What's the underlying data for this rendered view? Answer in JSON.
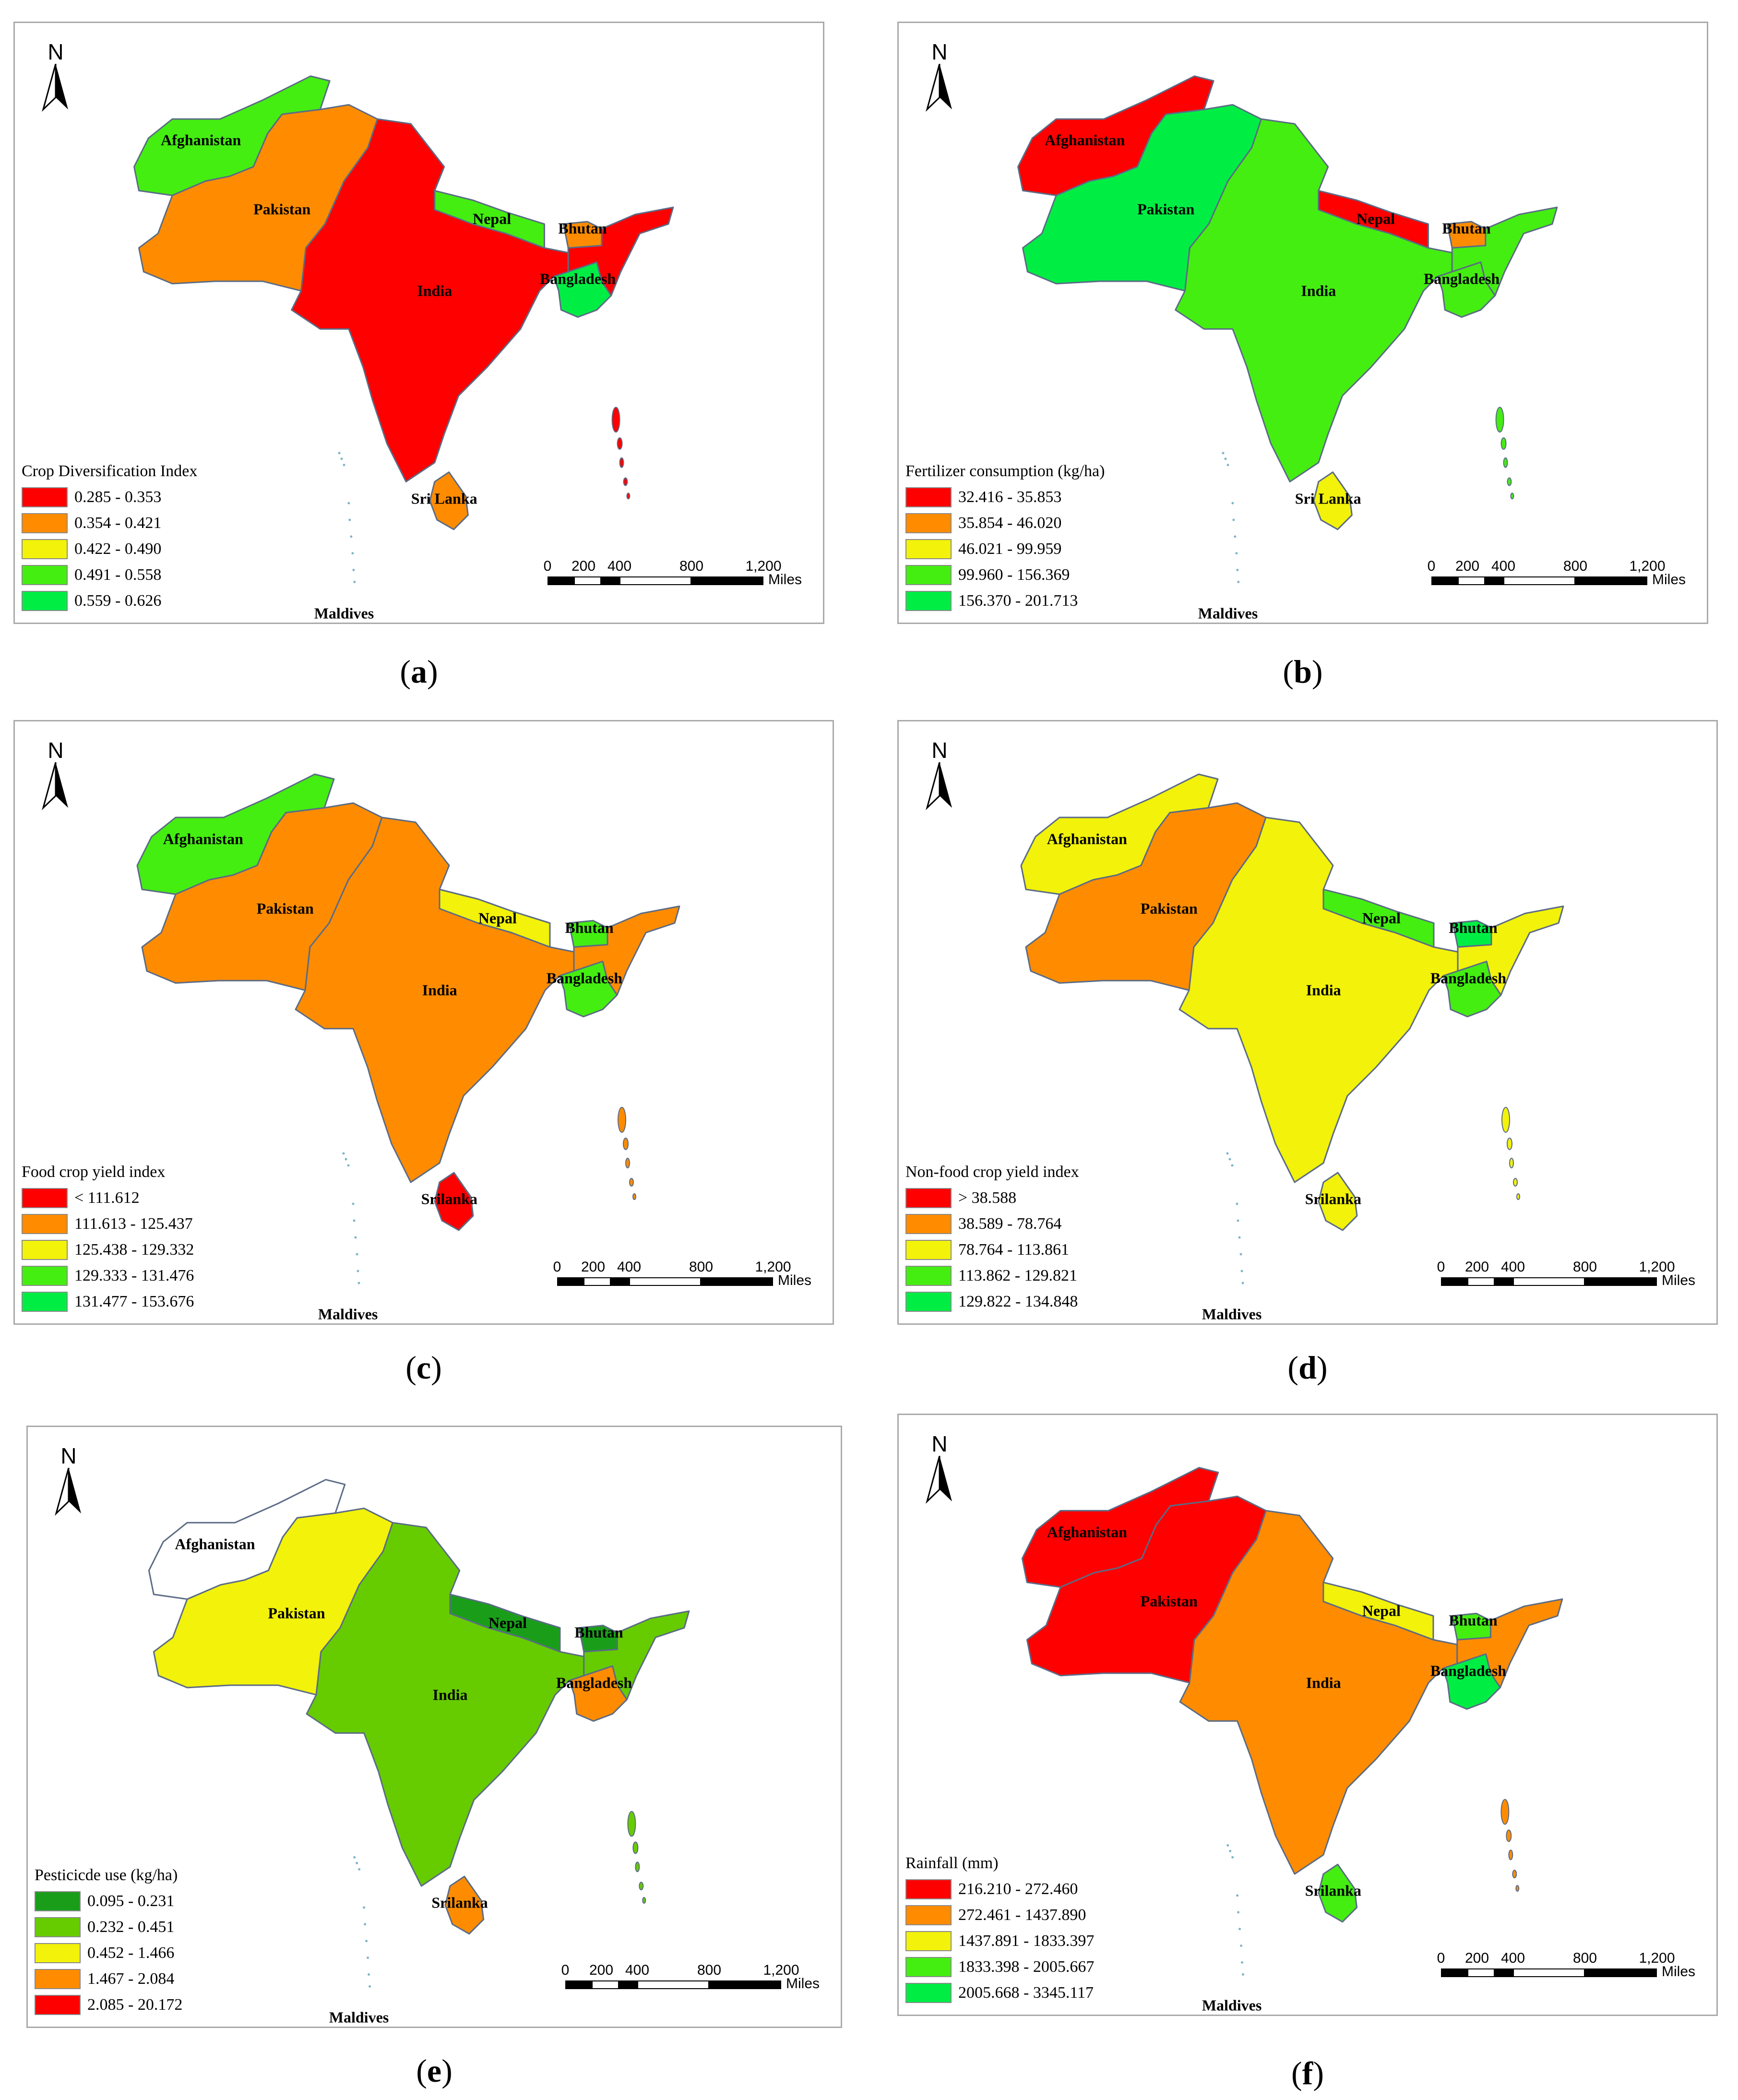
{
  "common": {
    "north_label": "N",
    "scale": {
      "ticks": [
        "0",
        "200",
        "400",
        "800",
        "1,200"
      ],
      "unit": "Miles"
    },
    "country_names": [
      "Afghanistan",
      "Pakistan",
      "India",
      "Nepal",
      "Bhutan",
      "Bangladesh",
      "Maldives"
    ]
  },
  "panels": [
    {
      "caption": {
        "open": "(",
        "letter": "a",
        "close": ")"
      },
      "legend_title": "Crop Diversification Index",
      "legend": [
        {
          "label": "0.285 - 0.353",
          "color": "#ff0000"
        },
        {
          "label": "0.354 - 0.421",
          "color": "#ff8c00"
        },
        {
          "label": "0.422 - 0.490",
          "color": "#f2f20a"
        },
        {
          "label": "0.491 - 0.558",
          "color": "#44ee11"
        },
        {
          "label": "0.559 - 0.626",
          "color": "#00ee44"
        }
      ],
      "sri_lanka_label": "Sri Lanka",
      "fills": {
        "afghanistan": "#44ee11",
        "pakistan": "#ff8c00",
        "india": "#ff0000",
        "nepal": "#44ee11",
        "bhutan": "#ff8c00",
        "bangladesh": "#00ee44",
        "northeast": "#ff0000",
        "srilanka": "#ff8c00"
      }
    },
    {
      "caption": {
        "open": "(",
        "letter": "b",
        "close": ")"
      },
      "legend_title": "Fertilizer consumption (kg/ha)",
      "legend": [
        {
          "label": "32.416 - 35.853",
          "color": "#ff0000"
        },
        {
          "label": "35.854 - 46.020",
          "color": "#ff8c00"
        },
        {
          "label": "46.021 - 99.959",
          "color": "#f2f20a"
        },
        {
          "label": "99.960 - 156.369",
          "color": "#44ee11"
        },
        {
          "label": "156.370 - 201.713",
          "color": "#00ee44"
        }
      ],
      "sri_lanka_label": "Sri Lanka",
      "fills": {
        "afghanistan": "#ff0000",
        "pakistan": "#00ee44",
        "india": "#44ee11",
        "nepal": "#ff0000",
        "bhutan": "#ff8c00",
        "bangladesh": "#44ee11",
        "northeast": "#44ee11",
        "srilanka": "#f2f20a"
      }
    },
    {
      "caption": {
        "open": "(",
        "letter": "c",
        "close": ")"
      },
      "legend_title": "Food crop yield index",
      "legend": [
        {
          "label": "< 111.612",
          "color": "#ff0000"
        },
        {
          "label": "111.613 - 125.437",
          "color": "#ff8c00"
        },
        {
          "label": "125.438 - 129.332",
          "color": "#f2f20a"
        },
        {
          "label": "129.333 - 131.476",
          "color": "#44ee11"
        },
        {
          "label": "131.477 - 153.676",
          "color": "#00ee44"
        }
      ],
      "sri_lanka_label": "Srilanka",
      "fills": {
        "afghanistan": "#44ee11",
        "pakistan": "#ff8c00",
        "india": "#ff8c00",
        "nepal": "#f2f20a",
        "bhutan": "#44ee11",
        "bangladesh": "#44ee11",
        "northeast": "#ff8c00",
        "srilanka": "#ff0000"
      }
    },
    {
      "caption": {
        "open": "(",
        "letter": "d",
        "close": ")"
      },
      "legend_title": "Non-food crop yield index",
      "legend": [
        {
          "label": "> 38.588",
          "color": "#ff0000"
        },
        {
          "label": "38.589 - 78.764",
          "color": "#ff8c00"
        },
        {
          "label": "78.764 - 113.861",
          "color": "#f2f20a"
        },
        {
          "label": "113.862 - 129.821",
          "color": "#44ee11"
        },
        {
          "label": "129.822 - 134.848",
          "color": "#00ee44"
        }
      ],
      "sri_lanka_label": "Srilanka",
      "fills": {
        "afghanistan": "#f2f20a",
        "pakistan": "#ff8c00",
        "india": "#f2f20a",
        "nepal": "#44ee11",
        "bhutan": "#00ee44",
        "bangladesh": "#44ee11",
        "northeast": "#f2f20a",
        "srilanka": "#f2f20a"
      }
    },
    {
      "caption": {
        "open": "(",
        "letter": "e",
        "close": ")"
      },
      "legend_title": "Pesticicde use (kg/ha)",
      "legend": [
        {
          "label": "0.095 - 0.231",
          "color": "#1a9e1a"
        },
        {
          "label": "0.232 - 0.451",
          "color": "#66cc00"
        },
        {
          "label": "0.452 - 1.466",
          "color": "#f2f20a"
        },
        {
          "label": "1.467 - 2.084",
          "color": "#ff8c00"
        },
        {
          "label": "2.085 - 20.172",
          "color": "#ff0000"
        }
      ],
      "sri_lanka_label": "Srilanka",
      "fills": {
        "afghanistan": "#ffffff",
        "pakistan": "#f2f20a",
        "india": "#66cc00",
        "nepal": "#1a9e1a",
        "bhutan": "#1a9e1a",
        "bangladesh": "#ff8c00",
        "northeast": "#66cc00",
        "srilanka": "#ff8c00"
      }
    },
    {
      "caption": {
        "open": "(",
        "letter": "f",
        "close": ")"
      },
      "legend_title": "Rainfall (mm)",
      "legend": [
        {
          "label": "216.210 - 272.460",
          "color": "#ff0000"
        },
        {
          "label": "272.461 - 1437.890",
          "color": "#ff8c00"
        },
        {
          "label": "1437.891 - 1833.397",
          "color": "#f2f20a"
        },
        {
          "label": "1833.398 - 2005.667",
          "color": "#44ee11"
        },
        {
          "label": "2005.668 - 3345.117",
          "color": "#00ee44"
        }
      ],
      "sri_lanka_label": "Srilanka",
      "fills": {
        "afghanistan": "#ff0000",
        "pakistan": "#ff0000",
        "india": "#ff8c00",
        "nepal": "#f2f20a",
        "bhutan": "#44ee11",
        "bangladesh": "#00ee44",
        "northeast": "#ff8c00",
        "srilanka": "#44ee11"
      }
    }
  ]
}
